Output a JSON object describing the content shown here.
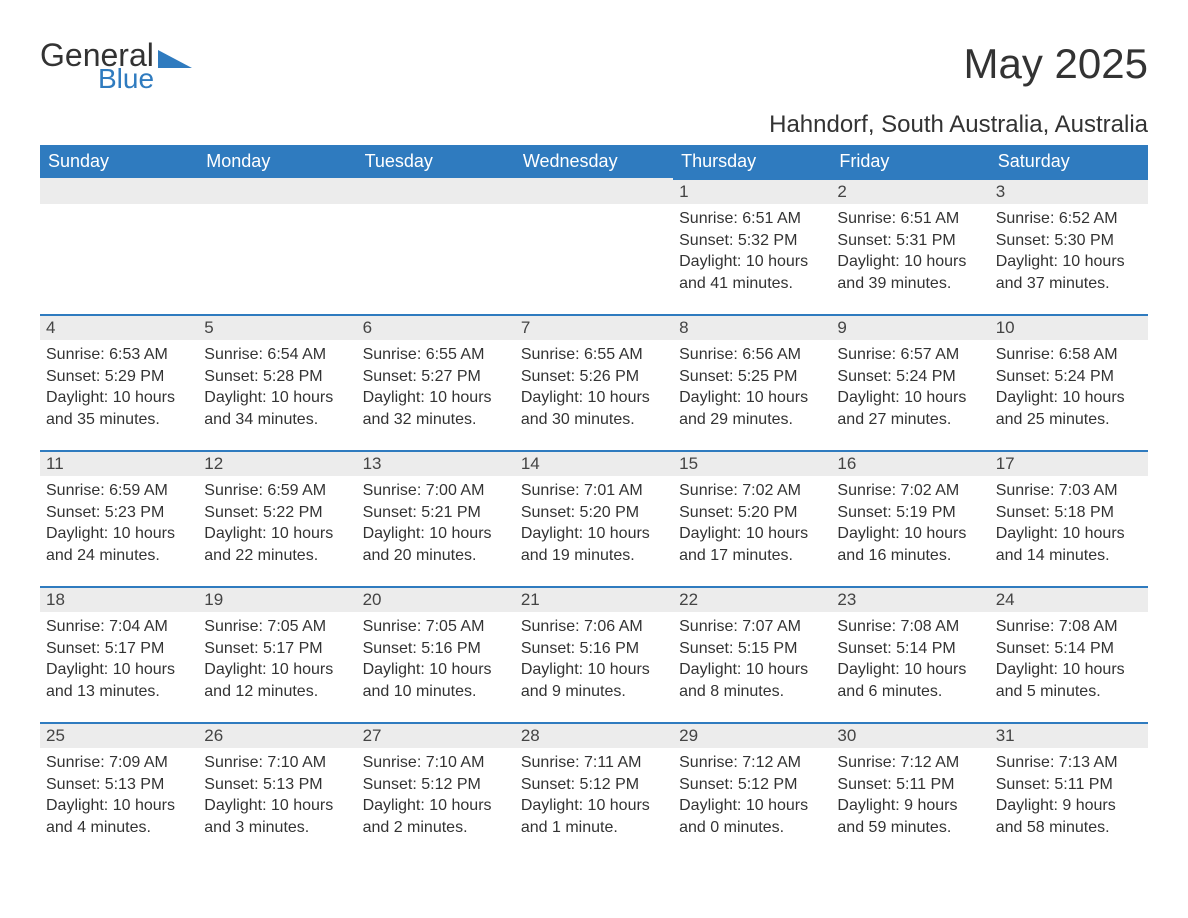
{
  "logo": {
    "general": "General",
    "blue": "Blue"
  },
  "title": "May 2025",
  "location": "Hahndorf, South Australia, Australia",
  "colors": {
    "header_bg": "#2f7bbf",
    "header_text": "#ffffff",
    "daybar_bg": "#ececec",
    "daybar_border": "#2f7bbf",
    "text": "#333333",
    "page_bg": "#ffffff"
  },
  "fonts": {
    "title_size": 42,
    "location_size": 24,
    "header_size": 18,
    "daynum_size": 17,
    "body_size": 16
  },
  "weekdays": [
    "Sunday",
    "Monday",
    "Tuesday",
    "Wednesday",
    "Thursday",
    "Friday",
    "Saturday"
  ],
  "weeks": [
    [
      null,
      null,
      null,
      null,
      {
        "n": "1",
        "sunrise": "6:51 AM",
        "sunset": "5:32 PM",
        "daylight": "10 hours and 41 minutes."
      },
      {
        "n": "2",
        "sunrise": "6:51 AM",
        "sunset": "5:31 PM",
        "daylight": "10 hours and 39 minutes."
      },
      {
        "n": "3",
        "sunrise": "6:52 AM",
        "sunset": "5:30 PM",
        "daylight": "10 hours and 37 minutes."
      }
    ],
    [
      {
        "n": "4",
        "sunrise": "6:53 AM",
        "sunset": "5:29 PM",
        "daylight": "10 hours and 35 minutes."
      },
      {
        "n": "5",
        "sunrise": "6:54 AM",
        "sunset": "5:28 PM",
        "daylight": "10 hours and 34 minutes."
      },
      {
        "n": "6",
        "sunrise": "6:55 AM",
        "sunset": "5:27 PM",
        "daylight": "10 hours and 32 minutes."
      },
      {
        "n": "7",
        "sunrise": "6:55 AM",
        "sunset": "5:26 PM",
        "daylight": "10 hours and 30 minutes."
      },
      {
        "n": "8",
        "sunrise": "6:56 AM",
        "sunset": "5:25 PM",
        "daylight": "10 hours and 29 minutes."
      },
      {
        "n": "9",
        "sunrise": "6:57 AM",
        "sunset": "5:24 PM",
        "daylight": "10 hours and 27 minutes."
      },
      {
        "n": "10",
        "sunrise": "6:58 AM",
        "sunset": "5:24 PM",
        "daylight": "10 hours and 25 minutes."
      }
    ],
    [
      {
        "n": "11",
        "sunrise": "6:59 AM",
        "sunset": "5:23 PM",
        "daylight": "10 hours and 24 minutes."
      },
      {
        "n": "12",
        "sunrise": "6:59 AM",
        "sunset": "5:22 PM",
        "daylight": "10 hours and 22 minutes."
      },
      {
        "n": "13",
        "sunrise": "7:00 AM",
        "sunset": "5:21 PM",
        "daylight": "10 hours and 20 minutes."
      },
      {
        "n": "14",
        "sunrise": "7:01 AM",
        "sunset": "5:20 PM",
        "daylight": "10 hours and 19 minutes."
      },
      {
        "n": "15",
        "sunrise": "7:02 AM",
        "sunset": "5:20 PM",
        "daylight": "10 hours and 17 minutes."
      },
      {
        "n": "16",
        "sunrise": "7:02 AM",
        "sunset": "5:19 PM",
        "daylight": "10 hours and 16 minutes."
      },
      {
        "n": "17",
        "sunrise": "7:03 AM",
        "sunset": "5:18 PM",
        "daylight": "10 hours and 14 minutes."
      }
    ],
    [
      {
        "n": "18",
        "sunrise": "7:04 AM",
        "sunset": "5:17 PM",
        "daylight": "10 hours and 13 minutes."
      },
      {
        "n": "19",
        "sunrise": "7:05 AM",
        "sunset": "5:17 PM",
        "daylight": "10 hours and 12 minutes."
      },
      {
        "n": "20",
        "sunrise": "7:05 AM",
        "sunset": "5:16 PM",
        "daylight": "10 hours and 10 minutes."
      },
      {
        "n": "21",
        "sunrise": "7:06 AM",
        "sunset": "5:16 PM",
        "daylight": "10 hours and 9 minutes."
      },
      {
        "n": "22",
        "sunrise": "7:07 AM",
        "sunset": "5:15 PM",
        "daylight": "10 hours and 8 minutes."
      },
      {
        "n": "23",
        "sunrise": "7:08 AM",
        "sunset": "5:14 PM",
        "daylight": "10 hours and 6 minutes."
      },
      {
        "n": "24",
        "sunrise": "7:08 AM",
        "sunset": "5:14 PM",
        "daylight": "10 hours and 5 minutes."
      }
    ],
    [
      {
        "n": "25",
        "sunrise": "7:09 AM",
        "sunset": "5:13 PM",
        "daylight": "10 hours and 4 minutes."
      },
      {
        "n": "26",
        "sunrise": "7:10 AM",
        "sunset": "5:13 PM",
        "daylight": "10 hours and 3 minutes."
      },
      {
        "n": "27",
        "sunrise": "7:10 AM",
        "sunset": "5:12 PM",
        "daylight": "10 hours and 2 minutes."
      },
      {
        "n": "28",
        "sunrise": "7:11 AM",
        "sunset": "5:12 PM",
        "daylight": "10 hours and 1 minute."
      },
      {
        "n": "29",
        "sunrise": "7:12 AM",
        "sunset": "5:12 PM",
        "daylight": "10 hours and 0 minutes."
      },
      {
        "n": "30",
        "sunrise": "7:12 AM",
        "sunset": "5:11 PM",
        "daylight": "9 hours and 59 minutes."
      },
      {
        "n": "31",
        "sunrise": "7:13 AM",
        "sunset": "5:11 PM",
        "daylight": "9 hours and 58 minutes."
      }
    ]
  ],
  "labels": {
    "sunrise": "Sunrise: ",
    "sunset": "Sunset: ",
    "daylight": "Daylight: "
  }
}
